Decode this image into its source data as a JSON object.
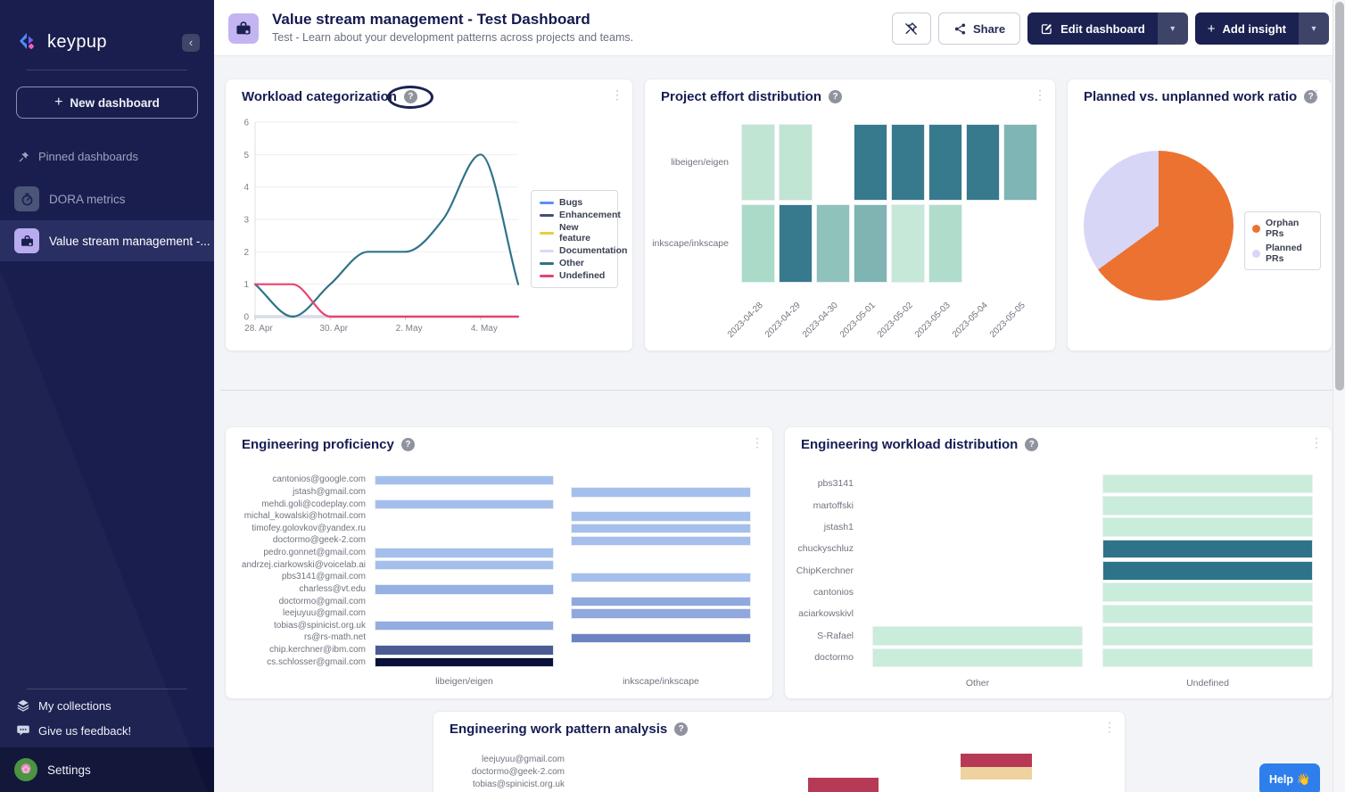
{
  "sidebar": {
    "brand": "keypup",
    "new_dashboard_label": "New dashboard",
    "pinned_header": "Pinned dashboards",
    "items": [
      {
        "label": "DORA metrics",
        "active": false
      },
      {
        "label": "Value stream management -...",
        "active": true
      }
    ],
    "footer_items": [
      {
        "label": "My collections"
      },
      {
        "label": "Give us feedback!"
      }
    ],
    "settings_label": "Settings"
  },
  "header": {
    "title": "Value stream management - Test Dashboard",
    "subtitle": "Test - Learn about your development patterns across projects and teams.",
    "buttons": {
      "share": "Share",
      "edit": "Edit dashboard",
      "add_insight": "Add insight"
    }
  },
  "help_label": "Help 👋",
  "ui_colors": {
    "sidebar_bg": "#1a1e4e",
    "accent_purple": "#b9abf0",
    "dark_button": "#1b2150",
    "help_blue": "#2e7fec",
    "annotation": "#1b2150"
  },
  "cards": {
    "workload": {
      "title": "Workload categorization",
      "chart": {
        "type": "line",
        "x": [
          "2023-04-28",
          "2023-04-29",
          "2023-04-30",
          "2023-05-01",
          "2023-05-02",
          "2023-05-03",
          "2023-05-04",
          "2023-05-05"
        ],
        "x_ticks": [
          {
            "index": 0,
            "label": "28. Apr"
          },
          {
            "index": 2,
            "label": "30. Apr"
          },
          {
            "index": 4,
            "label": "2. May"
          },
          {
            "index": 6,
            "label": "4. May"
          }
        ],
        "yticks": [
          0,
          1,
          2,
          3,
          4,
          5,
          6
        ],
        "ylim": [
          0,
          6
        ],
        "grid": true,
        "legend_position": "right",
        "series": [
          {
            "name": "Bugs",
            "color": "#5b8ff9",
            "values": [
              0,
              0,
              0,
              0,
              0,
              0,
              0,
              0
            ]
          },
          {
            "name": "Enhancement",
            "color": "#454f72",
            "values": [
              0,
              0,
              0,
              0,
              0,
              0,
              0,
              0
            ]
          },
          {
            "name": "New feature",
            "color": "#e7cd3f",
            "values": [
              0,
              0,
              0,
              0,
              0,
              0,
              0,
              0
            ]
          },
          {
            "name": "Documentation",
            "color": "#d7dbf5",
            "values": [
              0,
              0,
              0,
              0,
              0,
              0,
              0,
              0
            ]
          },
          {
            "name": "Other",
            "color": "#2e7388",
            "values": [
              1,
              0,
              1,
              2,
              2,
              3,
              5,
              1
            ]
          },
          {
            "name": "Undefined",
            "color": "#e8436f",
            "values": [
              1,
              1,
              0,
              0,
              0,
              0,
              0,
              0
            ]
          }
        ]
      }
    },
    "effort": {
      "title": "Project effort distribution",
      "chart": {
        "type": "heatmap",
        "columns": [
          "2023-04-28",
          "2023-04-29",
          "2023-04-30",
          "2023-05-01",
          "2023-05-02",
          "2023-05-03",
          "2023-05-04",
          "2023-05-05"
        ],
        "rows": [
          {
            "label": "libeigen/eigen",
            "cells": [
              "#c0e5d3",
              "#c0e5d3",
              null,
              "#37798d",
              "#37798d",
              "#37798d",
              "#37798d",
              "#7fb5b4"
            ]
          },
          {
            "label": "inkscape/inkscape",
            "cells": [
              "#a9dbc8",
              "#37798d",
              "#8fc2ba",
              "#7fb4b3",
              "#c6e8d8",
              "#b0ddcb",
              null,
              null
            ]
          }
        ]
      }
    },
    "planned": {
      "title": "Planned vs. unplanned work ratio",
      "chart": {
        "type": "pie",
        "slices": [
          {
            "name": "Orphan PRs",
            "color": "#ec7231",
            "percent": 65
          },
          {
            "name": "Planned PRs",
            "color": "#d8d6f7",
            "percent": 35
          }
        ]
      }
    },
    "proficiency": {
      "title": "Engineering proficiency",
      "chart": {
        "type": "heatmap",
        "columns": [
          "libeigen/eigen",
          "inkscape/inkscape"
        ],
        "rows": [
          {
            "label": "cantonios@google.com",
            "cells": [
              "#a5bfec",
              null
            ]
          },
          {
            "label": "jstash@gmail.com",
            "cells": [
              null,
              "#a5bfec"
            ]
          },
          {
            "label": "mehdi.goli@codeplay.com",
            "cells": [
              "#a5bfec",
              null
            ]
          },
          {
            "label": "michal_kowalski@hotmail.com",
            "cells": [
              null,
              "#a5bfec"
            ]
          },
          {
            "label": "timofey.golovkov@yandex.ru",
            "cells": [
              null,
              "#a5bfec"
            ]
          },
          {
            "label": "doctormo@geek-2.com",
            "cells": [
              null,
              "#a5bfec"
            ]
          },
          {
            "label": "pedro.gonnet@gmail.com",
            "cells": [
              "#a5bfec",
              null
            ]
          },
          {
            "label": "andrzej.ciarkowski@voicelab.ai",
            "cells": [
              "#a5bfec",
              null
            ]
          },
          {
            "label": "pbs3141@gmail.com",
            "cells": [
              null,
              "#a5bfec"
            ]
          },
          {
            "label": "charless@vt.edu",
            "cells": [
              "#96b0e4",
              null
            ]
          },
          {
            "label": "doctormo@gmail.com",
            "cells": [
              null,
              "#90a8de"
            ]
          },
          {
            "label": "leejuyuu@gmail.com",
            "cells": [
              null,
              "#90a8de"
            ]
          },
          {
            "label": "tobias@spinicist.org.uk",
            "cells": [
              "#93ace1",
              null
            ]
          },
          {
            "label": "rs@rs-math.net",
            "cells": [
              null,
              "#6d82c1"
            ]
          },
          {
            "label": "chip.kerchner@ibm.com",
            "cells": [
              "#4b5c95",
              null
            ]
          },
          {
            "label": "cs.schlosser@gmail.com",
            "cells": [
              "#0a1138",
              null
            ]
          }
        ]
      }
    },
    "distribution": {
      "title": "Engineering workload distribution",
      "chart": {
        "type": "heatmap",
        "columns": [
          "Other",
          "Undefined"
        ],
        "rows": [
          {
            "label": "pbs3141",
            "cells": [
              null,
              "#c9ecdb"
            ]
          },
          {
            "label": "martoffski",
            "cells": [
              null,
              "#c9ecdb"
            ]
          },
          {
            "label": "jstash1",
            "cells": [
              null,
              "#c9ecdb"
            ]
          },
          {
            "label": "chuckyschluz",
            "cells": [
              null,
              "#2e7388"
            ]
          },
          {
            "label": "ChipKerchner",
            "cells": [
              null,
              "#2e7388"
            ]
          },
          {
            "label": "cantonios",
            "cells": [
              null,
              "#c9ecdb"
            ]
          },
          {
            "label": "aciarkowskivl",
            "cells": [
              null,
              "#c9ecdb"
            ]
          },
          {
            "label": "S-Rafael",
            "cells": [
              "#c9ecdb",
              "#c9ecdb"
            ]
          },
          {
            "label": "doctormo",
            "cells": [
              "#c9ecdb",
              "#c9ecdb"
            ]
          }
        ]
      }
    },
    "pattern": {
      "title": "Engineering work pattern analysis",
      "rows": [
        "leejuyuu@gmail.com",
        "doctormo@geek-2.com",
        "tobias@spinicist.org.uk"
      ],
      "stacks": [
        {
          "segments": [
            {
              "color": "#b63a55"
            },
            {
              "color": "#eed39e"
            }
          ]
        },
        {
          "segments": [
            {
              "color": "#b63a55"
            },
            {
              "color": "#eed39e"
            }
          ]
        }
      ]
    }
  }
}
